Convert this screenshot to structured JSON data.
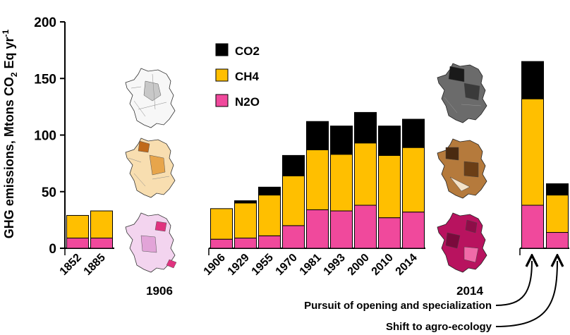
{
  "chart_data": {
    "type": "bar",
    "stacked": true,
    "ylabel": "GHG emissions, Mtons CO2 Eq yr-1",
    "ylabel_parts": [
      "GHG emissions, Mtons CO",
      "2",
      " Eq yr",
      "-1"
    ],
    "ylim": [
      0,
      200
    ],
    "yticks": [
      0,
      50,
      100,
      150,
      200
    ],
    "grid": false,
    "legend_position": "top-center",
    "categories": [
      "1852",
      "1885",
      "1906",
      "1929",
      "1955",
      "1970",
      "1981",
      "1993",
      "2000",
      "2010",
      "2014",
      "",
      ""
    ],
    "series": [
      {
        "name": "N2O",
        "color": "#f0499c",
        "values": [
          9,
          9,
          8,
          9,
          11,
          20,
          34,
          33,
          38,
          27,
          32,
          38,
          14
        ]
      },
      {
        "name": "CH4",
        "color": "#ffbf00",
        "values": [
          20,
          24,
          27,
          31,
          36,
          44,
          53,
          50,
          55,
          55,
          57,
          94,
          33
        ]
      },
      {
        "name": "CO2",
        "color": "#000000",
        "values": [
          0,
          0,
          0,
          2,
          7,
          18,
          25,
          25,
          27,
          26,
          25,
          33,
          10
        ]
      }
    ],
    "group_labels": {
      "maps_1906": "1906",
      "maps_2014": "2014"
    },
    "scenarios": [
      {
        "label": "Pursuit of opening and specialization",
        "color": "#000000"
      },
      {
        "label": "Shift to agro-ecology",
        "color": "#000000"
      }
    ]
  },
  "colors": {
    "axis": "#000000",
    "map_1906_co2": "#e2e2e2",
    "map_1906_ch4": "#f3c98c",
    "map_1906_n2o": "#e6a8e0",
    "map_2014_co2": "#5a5a5a",
    "map_2014_ch4": "#8a5a2b",
    "map_2014_n2o": "#b8135f"
  }
}
